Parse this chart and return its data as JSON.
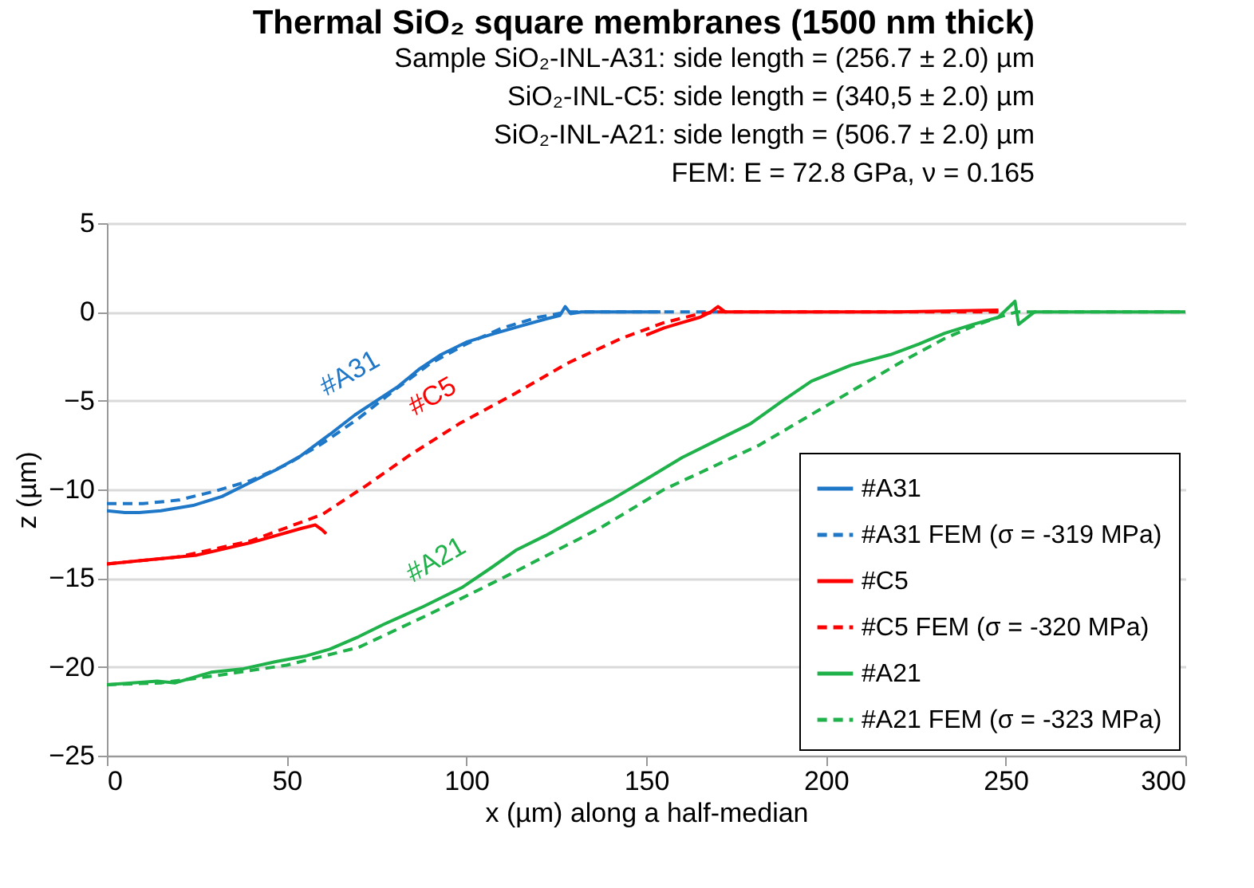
{
  "chart_data": {
    "type": "line",
    "title": "Thermal SiO₂ square membranes (1500 nm thick)",
    "subtitle": "Sample SiO₂-INL-A31: side length = (256.7 ± 2.0) µm\nSiO₂-INL-C5: side length = (340,5 ± 2.0) µm\nSiO₂-INL-A21: side length = (506.7 ± 2.0) µm\nFEM: E = 72.8 GPa, ν = 0.165",
    "xlabel": "x (µm) along a half-median",
    "ylabel": "z (µm)",
    "xlim": [
      0,
      300
    ],
    "xticks": [
      0,
      50,
      100,
      150,
      200,
      250,
      300
    ],
    "ylim": [
      -25,
      5
    ],
    "yticks": [
      -25,
      -20,
      -15,
      -10,
      -5,
      0,
      5
    ],
    "grid": "y",
    "legend": "bottom right",
    "series": [
      {
        "name": "#A31",
        "color": "#1f77c8",
        "line_style": "solid",
        "x": [
          0,
          5,
          9,
          15,
          24,
          32,
          39,
          47,
          54,
          62,
          69,
          75,
          81,
          87,
          93,
          100,
          108,
          115,
          122,
          126,
          127.5,
          129,
          132,
          140,
          154
        ],
        "values": [
          -11.2,
          -11.3,
          -11.3,
          -11.2,
          -10.9,
          -10.4,
          -9.7,
          -8.9,
          -8.1,
          -6.9,
          -5.8,
          -5,
          -4.2,
          -3.2,
          -2.4,
          -1.7,
          -1.2,
          -0.8,
          -0.4,
          -0.2,
          0.3,
          -0.1,
          0,
          0,
          0
        ]
      },
      {
        "name": "#A31 FEM (σ = -319 MPa)",
        "color": "#1f77c8",
        "line_style": "dashed",
        "x": [
          0,
          10,
          20,
          30,
          40,
          50,
          60,
          70,
          80,
          90,
          100,
          110,
          120,
          128,
          140,
          155,
          170
        ],
        "values": [
          -10.8,
          -10.8,
          -10.6,
          -10.1,
          -9.5,
          -8.6,
          -7.4,
          -6,
          -4.4,
          -2.9,
          -1.8,
          -0.9,
          -0.3,
          0,
          0,
          0,
          0
        ]
      },
      {
        "name": "#C5",
        "color": "#ff0000",
        "line_style": "solid",
        "x": [
          0,
          10,
          25,
          40,
          54,
          58,
          60,
          61,
          100,
          150,
          155,
          160,
          165,
          168,
          170,
          172,
          180,
          200,
          220,
          248
        ],
        "values": [
          -14.2,
          -14,
          -13.7,
          -13,
          -12.2,
          -12,
          -12.3,
          -12.5,
          null,
          -1.3,
          -0.9,
          -0.6,
          -0.3,
          0,
          0.3,
          0,
          0,
          0,
          0,
          0.1
        ]
      },
      {
        "name": "#C5 FEM (σ = -320 MPa)",
        "color": "#ff0000",
        "line_style": "dashed",
        "x": [
          0,
          20,
          40,
          60,
          72,
          84,
          98,
          113.5,
          128,
          143,
          155,
          165,
          170,
          200,
          230,
          248
        ],
        "values": [
          -14.2,
          -13.8,
          -12.9,
          -11.4,
          -9.8,
          -8.1,
          -6.3,
          -4.6,
          -2.9,
          -1.5,
          -0.6,
          -0.1,
          0,
          0,
          0,
          0
        ]
      },
      {
        "name": "#A21",
        "color": "#1fb24a",
        "line_style": "solid",
        "x": [
          0,
          14,
          19,
          29,
          38,
          47,
          55,
          62,
          70,
          77,
          88,
          99,
          107,
          114,
          122,
          131,
          141,
          151,
          160,
          170,
          179,
          188,
          196,
          207,
          218,
          226,
          233,
          241,
          248,
          252.6,
          253.6,
          258,
          270,
          285,
          300
        ],
        "values": [
          -21,
          -20.8,
          -20.9,
          -20.3,
          -20.1,
          -19.7,
          -19.4,
          -19,
          -18.3,
          -17.6,
          -16.6,
          -15.5,
          -14.4,
          -13.4,
          -12.6,
          -11.6,
          -10.5,
          -9.3,
          -8.2,
          -7.2,
          -6.3,
          -5,
          -3.9,
          -3,
          -2.4,
          -1.8,
          -1.2,
          -0.7,
          -0.3,
          0.6,
          -0.7,
          0,
          0,
          0,
          0
        ]
      },
      {
        "name": "#A21 FEM (σ = -323 MPa)",
        "color": "#1fb24a",
        "line_style": "dashed",
        "x": [
          0,
          15,
          30,
          50,
          70,
          90,
          110,
          137,
          155,
          181.5,
          200,
          211,
          222,
          233,
          241,
          248,
          253,
          270,
          300
        ],
        "values": [
          -21,
          -20.9,
          -20.5,
          -19.9,
          -18.9,
          -17,
          -15,
          -12.2,
          -10,
          -7.5,
          -5.3,
          -4,
          -2.7,
          -1.5,
          -0.8,
          -0.3,
          0,
          0,
          0
        ]
      }
    ],
    "annotations": [
      {
        "text": "#A31",
        "x": 75,
        "y": -5
      },
      {
        "text": "#C5",
        "x": 98,
        "y": -6.3
      },
      {
        "text": "#A21",
        "x": 99,
        "y": -15.5
      }
    ]
  }
}
